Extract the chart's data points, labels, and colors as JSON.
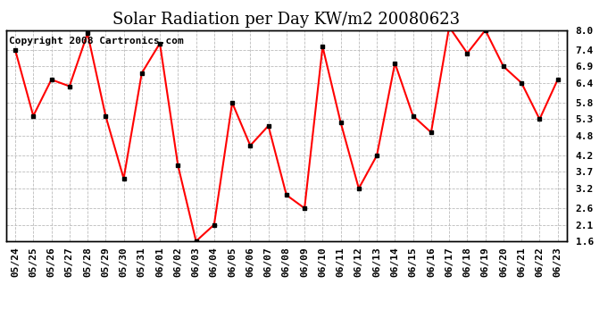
{
  "title": "Solar Radiation per Day KW/m2 20080623",
  "copyright_text": "Copyright 2008 Cartronics.com",
  "labels": [
    "05/24",
    "05/25",
    "05/26",
    "05/27",
    "05/28",
    "05/29",
    "05/30",
    "05/31",
    "06/01",
    "06/02",
    "06/03",
    "06/04",
    "06/05",
    "06/06",
    "06/07",
    "06/08",
    "06/09",
    "06/10",
    "06/11",
    "06/12",
    "06/13",
    "06/14",
    "06/15",
    "06/16",
    "06/17",
    "06/18",
    "06/19",
    "06/20",
    "06/21",
    "06/22",
    "06/23"
  ],
  "values": [
    7.4,
    5.4,
    6.5,
    6.3,
    7.9,
    5.4,
    3.5,
    6.7,
    7.6,
    3.9,
    1.6,
    2.1,
    5.8,
    4.5,
    5.1,
    3.0,
    2.6,
    7.5,
    5.2,
    3.2,
    4.2,
    7.0,
    5.4,
    4.9,
    8.1,
    7.3,
    8.0,
    6.9,
    6.4,
    5.3,
    6.5
  ],
  "line_color": "#ff0000",
  "marker": "s",
  "marker_color": "#000000",
  "marker_size": 3,
  "background_color": "#ffffff",
  "plot_bg_color": "#ffffff",
  "grid_color": "#bbbbbb",
  "ylim": [
    1.6,
    8.0
  ],
  "yticks": [
    1.6,
    2.1,
    2.6,
    3.2,
    3.7,
    4.2,
    4.8,
    5.3,
    5.8,
    6.4,
    6.9,
    7.4,
    8.0
  ],
  "title_fontsize": 13,
  "tick_fontsize": 8,
  "copyright_fontsize": 8
}
